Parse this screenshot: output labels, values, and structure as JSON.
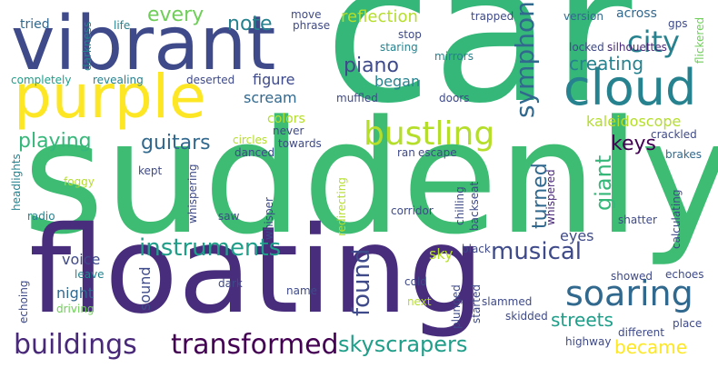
{
  "colors": {
    "dark_purple": "#440154",
    "indigo": "#482878",
    "slate_blue": "#3e4a89",
    "steel_blue": "#31688e",
    "teal": "#26828e",
    "sea_green": "#1f9e89",
    "green": "#35b779",
    "light_green": "#6ece58",
    "lime": "#b5de2b",
    "yellow": "#fde725"
  },
  "words": {
    "car": "car",
    "suddenly": "suddenly",
    "floating": "floating",
    "vibrant": "vibrant",
    "purple": "purple",
    "cloud": "cloud",
    "bustling": "bustling",
    "soaring": "soaring",
    "buildings": "buildings",
    "transformed": "transformed",
    "instruments": "instruments",
    "musical": "musical",
    "skyscrapers": "skyscrapers",
    "city": "city",
    "symphony": "symphony",
    "playing": "playing",
    "guitars": "guitars",
    "piano": "piano",
    "every": "every",
    "note": "note",
    "creating": "creating",
    "reflection": "reflection",
    "streets": "streets",
    "found": "found",
    "giant": "giant",
    "turned": "turned",
    "keys": "keys",
    "became": "became",
    "kaleidoscope": "kaleidoscope",
    "began": "began",
    "scream": "scream",
    "figure": "figure",
    "colors": "colors",
    "eyes": "eyes",
    "voice": "voice",
    "night": "night",
    "sound": "sound",
    "sky": "sky",
    "tried": "tried",
    "life": "life",
    "move": "move",
    "phrase": "phrase",
    "trapped": "trapped",
    "version": "version",
    "across": "across",
    "gps": "gps",
    "flickered": "flickered",
    "darkness": "darkness",
    "completely": "completely",
    "revealing": "revealing",
    "deserted": "deserted",
    "stop": "stop",
    "staring": "staring",
    "mirrors": "mirrors",
    "locked": "locked",
    "silhouettes": "silhouettes",
    "muffled": "muffled",
    "doors": "doors",
    "circles": "circles",
    "never": "never",
    "towards": "towards",
    "danced": "danced",
    "crackled": "crackled",
    "headlights": "headlights",
    "kept": "kept",
    "ran": "ran",
    "escape": "escape",
    "brakes": "brakes",
    "foggy": "foggy",
    "radio": "radio",
    "whispering": "whispering",
    "saw": "saw",
    "whisper": "whisper",
    "redirecting": "redirecting",
    "corridor": "corridor",
    "chilling": "chilling",
    "backseat": "backseat",
    "whispered": "whispered",
    "calculating": "calculating",
    "shatter": "shatter",
    "black": "black",
    "leave": "leave",
    "cold": "cold",
    "echoing": "echoing",
    "dark": "dark",
    "name": "name",
    "next": "next",
    "started": "started",
    "plunged": "plunged",
    "showed": "showed",
    "echoes": "echoes",
    "driving": "driving",
    "skidded": "skidded",
    "slammed": "slammed",
    "place": "place",
    "different": "different",
    "highway": "highway"
  }
}
